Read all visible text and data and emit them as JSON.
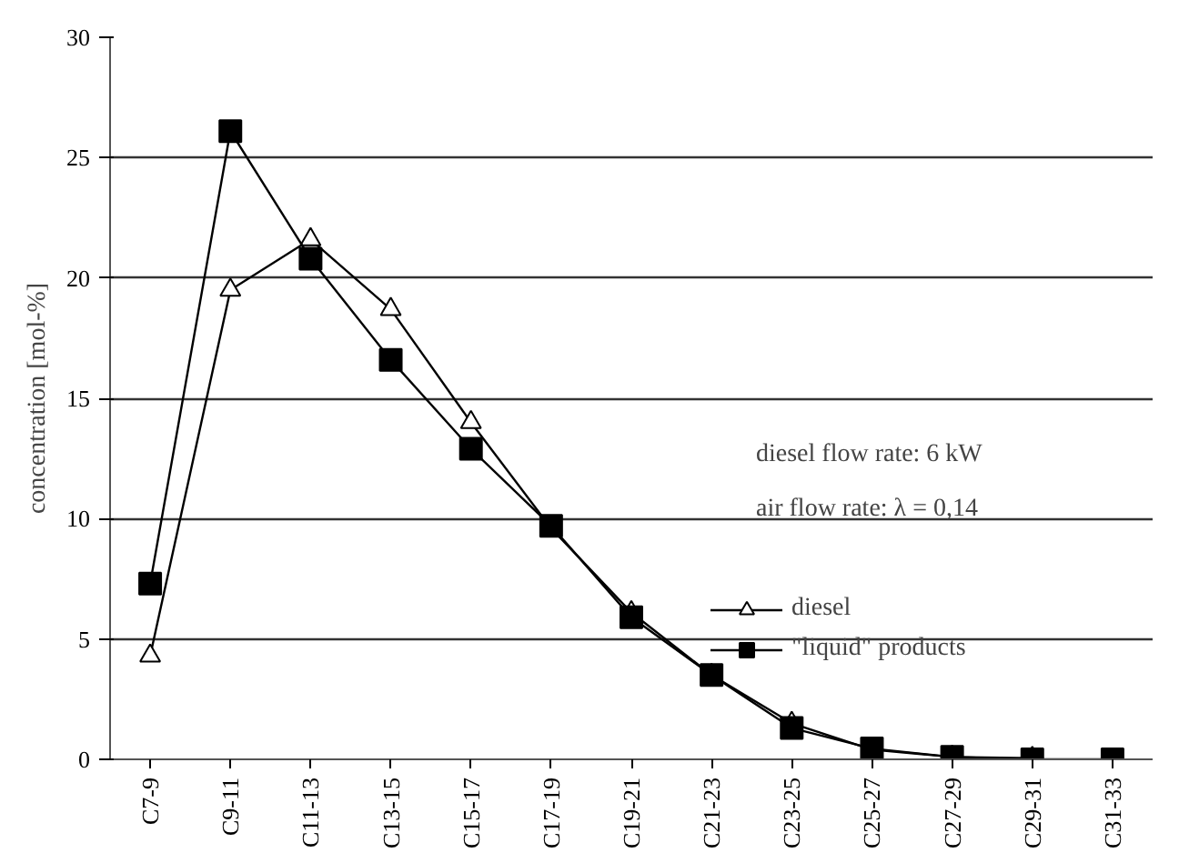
{
  "chart_data": {
    "type": "line",
    "ylabel": "concentration [mol-%]",
    "categories": [
      "C7-9",
      "C9-11",
      "C11-13",
      "C13-15",
      "C15-17",
      "C17-19",
      "C19-21",
      "C21-23",
      "C23-25",
      "C25-27",
      "C27-29",
      "C29-31",
      "C31-33"
    ],
    "series": [
      {
        "name": "diesel",
        "color": "#000000",
        "marker": "triangle",
        "values": [
          4.3,
          19.5,
          21.6,
          18.7,
          14.0,
          9.6,
          6.1,
          3.5,
          1.5,
          0.4,
          0.1,
          0.05,
          null
        ]
      },
      {
        "name": "\"liquid\" products",
        "color": "#000000",
        "marker": "square",
        "values": [
          7.3,
          26.1,
          20.8,
          16.6,
          12.9,
          9.7,
          5.9,
          3.5,
          1.3,
          0.45,
          0.1,
          0.0,
          0.0
        ]
      }
    ],
    "ylim": [
      0,
      30
    ],
    "yticks": [
      0,
      5,
      10,
      15,
      20,
      25,
      30
    ],
    "grid": "y",
    "legend": "right",
    "line_style": "solid",
    "annotations": [
      "diesel flow rate: 6 kW",
      "air flow rate: λ = 0,14"
    ]
  }
}
